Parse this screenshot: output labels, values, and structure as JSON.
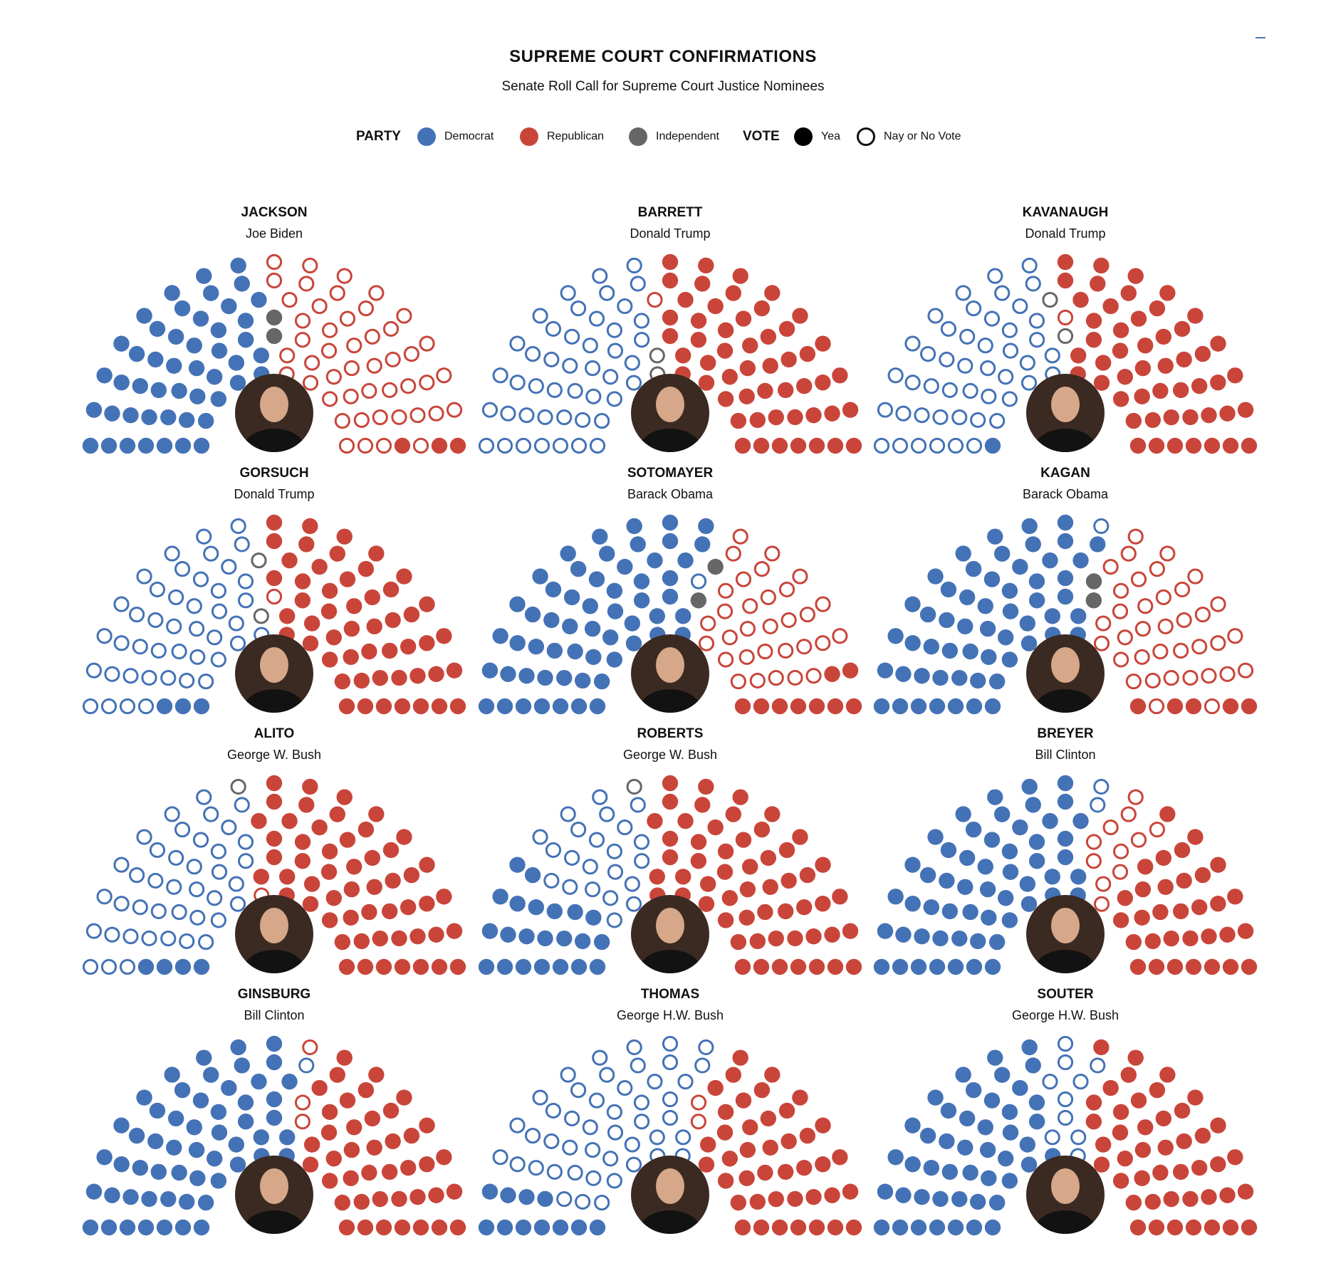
{
  "title": "SUPREME COURT CONFIRMATIONS",
  "subtitle": "Senate Roll Call for Supreme Court Justice Nominees",
  "legend": {
    "party_label": "PARTY",
    "vote_label": "VOTE",
    "democrat": "Democrat",
    "republican": "Republican",
    "independent": "Independent",
    "yea": "Yea",
    "nay": "Nay or No Vote"
  },
  "colors": {
    "democrat": "#4472b6",
    "republican": "#c9453a",
    "independent": "#666666",
    "yea": "#000000"
  },
  "chart_data": {
    "type": "parliament",
    "seats_per_chart": 100,
    "seat_order": "left-to-right by angle",
    "justices": [
      {
        "name": "JACKSON",
        "president": "Joe Biden",
        "photo_icon": "portrait-jackson-icon",
        "dem_yea": 48,
        "dem_nay": 0,
        "rep_yea": 3,
        "rep_nay": 47,
        "ind_yea": 2,
        "ind_nay": 0
      },
      {
        "name": "BARRETT",
        "president": "Donald Trump",
        "photo_icon": "portrait-barrett-icon",
        "dem_yea": 0,
        "dem_nay": 45,
        "rep_yea": 52,
        "rep_nay": 1,
        "ind_yea": 0,
        "ind_nay": 2
      },
      {
        "name": "KAVANAUGH",
        "president": "Donald Trump",
        "photo_icon": "portrait-kavanaugh-icon",
        "dem_yea": 1,
        "dem_nay": 46,
        "rep_yea": 50,
        "rep_nay": 1,
        "ind_yea": 0,
        "ind_nay": 2
      },
      {
        "name": "GORSUCH",
        "president": "Donald Trump",
        "photo_icon": "portrait-gorsuch-icon",
        "dem_yea": 3,
        "dem_nay": 43,
        "rep_yea": 51,
        "rep_nay": 1,
        "ind_yea": 0,
        "ind_nay": 2
      },
      {
        "name": "SOTOMAYER",
        "president": "Barack Obama",
        "photo_icon": "portrait-sotomayor-icon",
        "dem_yea": 57,
        "dem_nay": 1,
        "rep_yea": 9,
        "rep_nay": 31,
        "ind_yea": 2,
        "ind_nay": 0
      },
      {
        "name": "KAGAN",
        "president": "Barack Obama",
        "photo_icon": "portrait-kagan-icon",
        "dem_yea": 56,
        "dem_nay": 1,
        "rep_yea": 5,
        "rep_nay": 36,
        "ind_yea": 2,
        "ind_nay": 0
      },
      {
        "name": "ALITO",
        "president": "George W. Bush",
        "photo_icon": "portrait-alito-icon",
        "dem_yea": 4,
        "dem_nay": 40,
        "rep_yea": 54,
        "rep_nay": 1,
        "ind_yea": 0,
        "ind_nay": 1
      },
      {
        "name": "ROBERTS",
        "president": "George W. Bush",
        "photo_icon": "portrait-roberts-icon",
        "dem_yea": 22,
        "dem_nay": 22,
        "rep_yea": 55,
        "rep_nay": 0,
        "ind_yea": 0,
        "ind_nay": 1
      },
      {
        "name": "BREYER",
        "president": "Bill Clinton",
        "photo_icon": "portrait-breyer-icon",
        "dem_yea": 55,
        "dem_nay": 2,
        "rep_yea": 32,
        "rep_nay": 11,
        "ind_yea": 0,
        "ind_nay": 0
      },
      {
        "name": "GINSBURG",
        "president": "Bill Clinton",
        "photo_icon": "portrait-ginsburg-icon",
        "dem_yea": 55,
        "dem_nay": 1,
        "rep_yea": 41,
        "rep_nay": 3,
        "ind_yea": 0,
        "ind_nay": 0
      },
      {
        "name": "THOMAS",
        "president": "George H.W. Bush",
        "photo_icon": "portrait-thomas-icon",
        "dem_yea": 11,
        "dem_nay": 46,
        "rep_yea": 41,
        "rep_nay": 2,
        "ind_yea": 0,
        "ind_nay": 0
      },
      {
        "name": "SOUTER",
        "president": "George H.W. Bush",
        "photo_icon": "portrait-souter-icon",
        "dem_yea": 46,
        "dem_nay": 10,
        "rep_yea": 44,
        "rep_nay": 0,
        "ind_yea": 0,
        "ind_nay": 0
      }
    ]
  }
}
